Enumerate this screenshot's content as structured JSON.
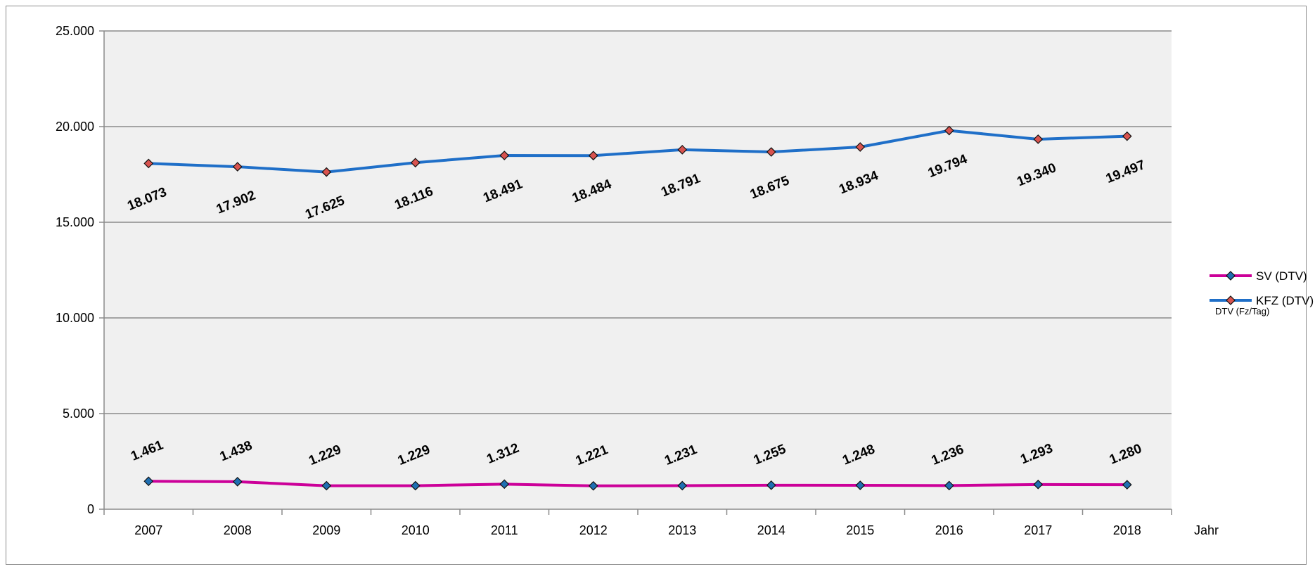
{
  "chart_data": {
    "type": "line",
    "title": "",
    "xlabel": "Jahr",
    "ylabel": "",
    "unit_note": "DTV (Fz/Tag)",
    "ylim": [
      0,
      25000
    ],
    "yticks": [
      0,
      5000,
      10000,
      15000,
      20000,
      25000
    ],
    "ytick_labels": [
      "0",
      "5.000",
      "10.000",
      "15.000",
      "20.000",
      "25.000"
    ],
    "categories": [
      "2007",
      "2008",
      "2009",
      "2010",
      "2011",
      "2012",
      "2013",
      "2014",
      "2015",
      "2016",
      "2017",
      "2018"
    ],
    "grid": true,
    "legend_position": "right",
    "series": [
      {
        "name": "SV (DTV)",
        "color": "#cc0099",
        "marker_color": "#1f6fb2",
        "values": [
          1461,
          1438,
          1229,
          1229,
          1312,
          1221,
          1231,
          1255,
          1248,
          1236,
          1293,
          1280
        ],
        "labels": [
          "1.461",
          "1.438",
          "1.229",
          "1.229",
          "1.312",
          "1.221",
          "1.231",
          "1.255",
          "1.248",
          "1.236",
          "1.293",
          "1.280"
        ]
      },
      {
        "name": "KFZ (DTV)",
        "color": "#1f6fc8",
        "marker_color": "#d9534f",
        "values": [
          18073,
          17902,
          17625,
          18116,
          18491,
          18484,
          18791,
          18675,
          18934,
          19794,
          19340,
          19497
        ],
        "labels": [
          "18.073",
          "17.902",
          "17.625",
          "18.116",
          "18.491",
          "18.484",
          "18.791",
          "18.675",
          "18.934",
          "19.794",
          "19.340",
          "19.497"
        ]
      }
    ]
  }
}
